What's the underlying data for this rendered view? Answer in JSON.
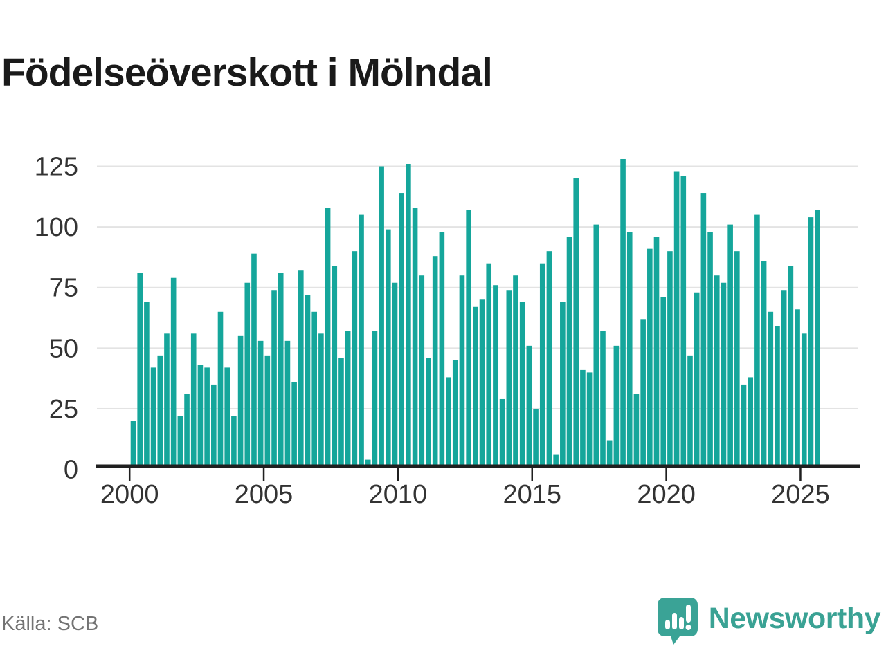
{
  "title": "Födelseöverskott i Mölndal",
  "source": "Källa: SCB",
  "branding": {
    "name": "Newsworthy",
    "icon": "newsworthy-speech-bubble-chart-icon"
  },
  "colors": {
    "bar": "#15a69b",
    "axis": "#1f1f1f",
    "grid": "#e3e3e3",
    "tick_label": "#333333",
    "title": "#1a1a1a",
    "source": "#737373",
    "brand": "#3aa294"
  },
  "chart_data": {
    "type": "bar",
    "title": "Födelseöverskott i Mölndal",
    "frequency": "quarterly",
    "x_start": "2000 Q1",
    "x_end": "2025 Q3",
    "categories": [
      "2000Q1",
      "2000Q2",
      "2000Q3",
      "2000Q4",
      "2001Q1",
      "2001Q2",
      "2001Q3",
      "2001Q4",
      "2002Q1",
      "2002Q2",
      "2002Q3",
      "2002Q4",
      "2003Q1",
      "2003Q2",
      "2003Q3",
      "2003Q4",
      "2004Q1",
      "2004Q2",
      "2004Q3",
      "2004Q4",
      "2005Q1",
      "2005Q2",
      "2005Q3",
      "2005Q4",
      "2006Q1",
      "2006Q2",
      "2006Q3",
      "2006Q4",
      "2007Q1",
      "2007Q2",
      "2007Q3",
      "2007Q4",
      "2008Q1",
      "2008Q2",
      "2008Q3",
      "2008Q4",
      "2009Q1",
      "2009Q2",
      "2009Q3",
      "2009Q4",
      "2010Q1",
      "2010Q2",
      "2010Q3",
      "2010Q4",
      "2011Q1",
      "2011Q2",
      "2011Q3",
      "2011Q4",
      "2012Q1",
      "2012Q2",
      "2012Q3",
      "2012Q4",
      "2013Q1",
      "2013Q2",
      "2013Q3",
      "2013Q4",
      "2014Q1",
      "2014Q2",
      "2014Q3",
      "2014Q4",
      "2015Q1",
      "2015Q2",
      "2015Q3",
      "2015Q4",
      "2016Q1",
      "2016Q2",
      "2016Q3",
      "2016Q4",
      "2017Q1",
      "2017Q2",
      "2017Q3",
      "2017Q4",
      "2018Q1",
      "2018Q2",
      "2018Q3",
      "2018Q4",
      "2019Q1",
      "2019Q2",
      "2019Q3",
      "2019Q4",
      "2020Q1",
      "2020Q2",
      "2020Q3",
      "2020Q4",
      "2021Q1",
      "2021Q2",
      "2021Q3",
      "2021Q4",
      "2022Q1",
      "2022Q2",
      "2022Q3",
      "2022Q4",
      "2023Q1",
      "2023Q2",
      "2023Q3",
      "2023Q4",
      "2024Q1",
      "2024Q2",
      "2024Q3",
      "2024Q4",
      "2025Q1",
      "2025Q2",
      "2025Q3"
    ],
    "values": [
      20,
      81,
      69,
      42,
      47,
      56,
      79,
      22,
      31,
      56,
      43,
      42,
      35,
      65,
      42,
      22,
      55,
      77,
      89,
      53,
      47,
      74,
      81,
      53,
      36,
      82,
      72,
      65,
      56,
      108,
      84,
      46,
      57,
      90,
      105,
      4,
      57,
      125,
      99,
      77,
      114,
      126,
      108,
      80,
      46,
      88,
      98,
      38,
      45,
      80,
      107,
      67,
      70,
      85,
      76,
      29,
      74,
      80,
      69,
      51,
      25,
      85,
      90,
      6,
      69,
      96,
      120,
      41,
      40,
      101,
      57,
      12,
      51,
      128,
      98,
      31,
      62,
      91,
      96,
      71,
      90,
      123,
      121,
      47,
      73,
      114,
      98,
      80,
      77,
      101,
      90,
      35,
      38,
      105,
      86,
      65,
      59,
      74,
      84,
      66,
      56,
      104,
      107
    ],
    "xlabel": "",
    "ylabel": "",
    "ylim": [
      0,
      130
    ],
    "yticks": [
      0,
      25,
      50,
      75,
      100,
      125
    ],
    "xticks": [
      2000,
      2005,
      2010,
      2015,
      2020,
      2025
    ],
    "grid": "horizontal",
    "legend": "none"
  }
}
